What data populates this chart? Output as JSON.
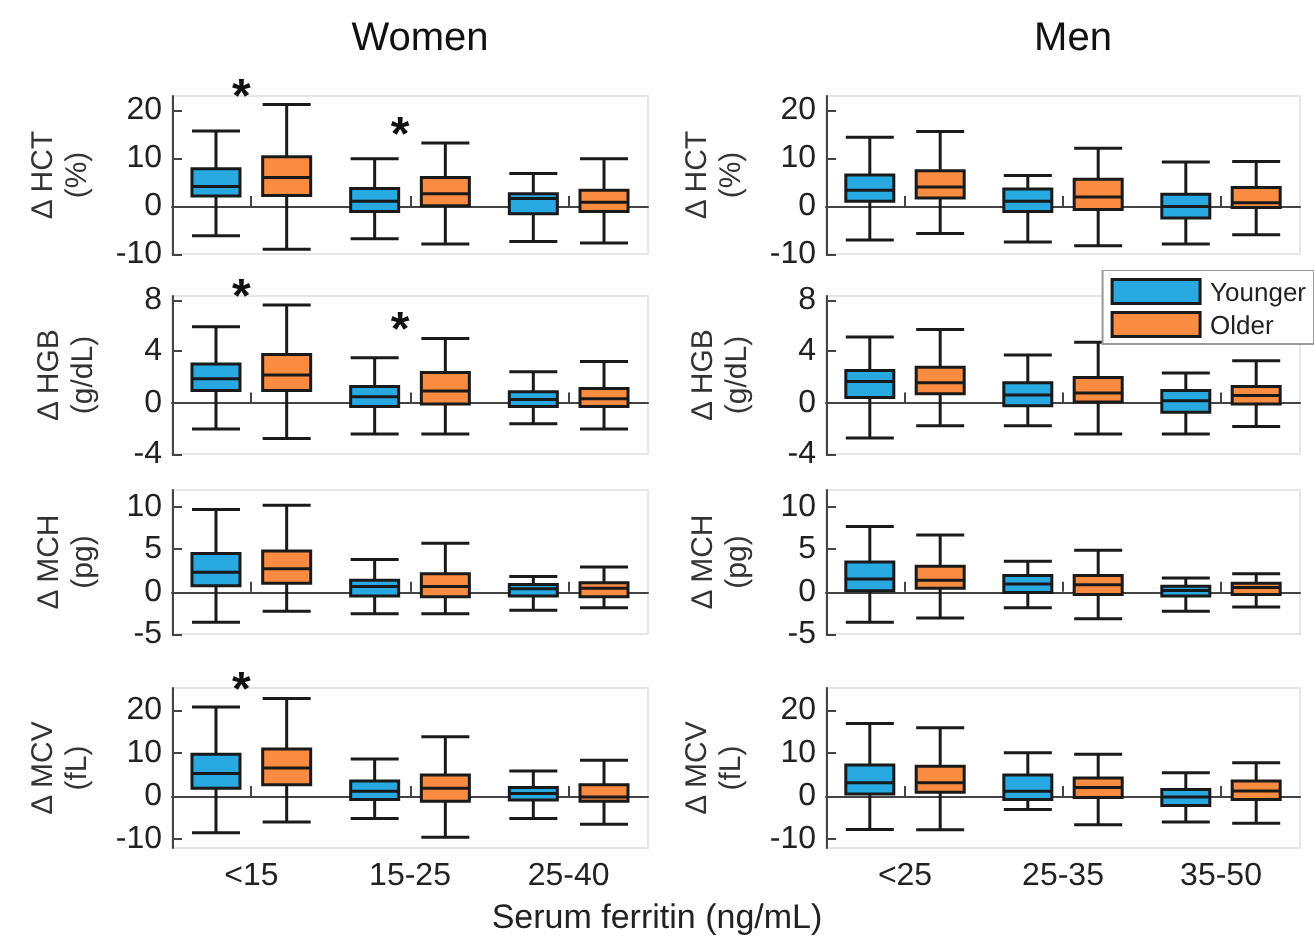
{
  "chart_data": [
    {
      "type": "box",
      "title": "Women",
      "ylabel": "Δ HCT\n(%)",
      "categories": [
        null,
        null,
        null
      ],
      "ylim": [
        -10,
        23
      ],
      "yticks": [
        -10,
        0,
        10,
        20
      ],
      "tick_labels": "y",
      "annotations": [
        "*",
        "*"
      ],
      "series": [
        {
          "color": "#29a9e1",
          "boxes": [
            {
              "low": -6.2,
              "q1": 2.1,
              "median": 4.1,
              "q3": 7.8,
              "high": 15.7
            },
            {
              "low": -6.8,
              "q1": -1.1,
              "median": 1,
              "q3": 3.7,
              "high": 9.9
            },
            {
              "low": -7.4,
              "q1": -1.6,
              "median": 1.6,
              "q3": 2.6,
              "high": 6.8
            }
          ]
        },
        {
          "color": "#fa8c41",
          "boxes": [
            {
              "low": -9,
              "q1": 2.2,
              "median": 6,
              "q3": 10.3,
              "high": 21.2
            },
            {
              "low": -7.9,
              "q1": 0.1,
              "median": 2.6,
              "q3": 6,
              "high": 13.2
            },
            {
              "low": -7.7,
              "q1": -1.1,
              "median": 0.8,
              "q3": 3.3,
              "high": 9.9
            }
          ]
        }
      ]
    },
    {
      "type": "box",
      "title": "Men",
      "ylabel": "Δ HCT\n(%)",
      "categories": [
        null,
        null,
        null
      ],
      "ylim": [
        -10,
        23
      ],
      "yticks": [
        -10,
        0,
        10,
        20
      ],
      "tick_labels": "y",
      "series": [
        {
          "color": "#29a9e1",
          "boxes": [
            {
              "low": -7.1,
              "q1": 1,
              "median": 3.3,
              "q3": 6.5,
              "high": 14.4
            },
            {
              "low": -7.5,
              "q1": -1.1,
              "median": 1,
              "q3": 3.6,
              "high": 6.4
            },
            {
              "low": -7.9,
              "q1": -2.5,
              "median": -0.1,
              "q3": 2.5,
              "high": 9.2
            }
          ]
        },
        {
          "color": "#fa8c41",
          "boxes": [
            {
              "low": -5.7,
              "q1": 1.7,
              "median": 4,
              "q3": 7.4,
              "high": 15.6
            },
            {
              "low": -8.3,
              "q1": -0.7,
              "median": 1.9,
              "q3": 5.6,
              "high": 12.1
            },
            {
              "low": -6,
              "q1": -0.3,
              "median": 0.7,
              "q3": 3.9,
              "high": 9.3
            }
          ]
        }
      ]
    },
    {
      "type": "box",
      "ylabel": "Δ HGB\n(g/dL)",
      "categories": [
        null,
        null,
        null
      ],
      "ylim": [
        -4,
        8.3
      ],
      "yticks": [
        -4,
        0,
        4,
        8
      ],
      "tick_labels": "y",
      "annotations": [
        "*",
        "*"
      ],
      "series": [
        {
          "color": "#29a9e1",
          "boxes": [
            {
              "low": -2.05,
              "q1": 0.95,
              "median": 1.85,
              "q3": 3,
              "high": 5.9
            },
            {
              "low": -2.45,
              "q1": -0.3,
              "median": 0.45,
              "q3": 1.25,
              "high": 3.5
            },
            {
              "low": -1.65,
              "q1": -0.3,
              "median": 0.25,
              "q3": 0.85,
              "high": 2.4
            }
          ]
        },
        {
          "color": "#fa8c41",
          "boxes": [
            {
              "low": -2.8,
              "q1": 0.95,
              "median": 2.15,
              "q3": 3.75,
              "high": 7.6
            },
            {
              "low": -2.45,
              "q1": -0.1,
              "median": 0.9,
              "q3": 2.35,
              "high": 5
            },
            {
              "low": -2.05,
              "q1": -0.3,
              "median": 0.3,
              "q3": 1.1,
              "high": 3.2
            }
          ]
        }
      ]
    },
    {
      "type": "box",
      "ylabel": "Δ HGB\n(g/dL)",
      "categories": [
        null,
        null,
        null
      ],
      "ylim": [
        -4,
        8.3
      ],
      "yticks": [
        -4,
        0,
        4,
        8
      ],
      "tick_labels": "y",
      "legend": "top right",
      "series": [
        {
          "name": "Younger",
          "color": "#29a9e1",
          "boxes": [
            {
              "low": -2.75,
              "q1": 0.4,
              "median": 1.65,
              "q3": 2.5,
              "high": 5.1
            },
            {
              "low": -1.8,
              "q1": -0.25,
              "median": 0.6,
              "q3": 1.55,
              "high": 3.7
            },
            {
              "low": -2.45,
              "q1": -0.75,
              "median": 0.15,
              "q3": 0.95,
              "high": 2.3
            }
          ]
        },
        {
          "name": "Older",
          "color": "#fa8c41",
          "boxes": [
            {
              "low": -1.8,
              "q1": 0.7,
              "median": 1.55,
              "q3": 2.75,
              "high": 5.7
            },
            {
              "low": -2.45,
              "q1": 0.05,
              "median": 0.75,
              "q3": 1.95,
              "high": 4.7
            },
            {
              "low": -1.85,
              "q1": -0.1,
              "median": 0.55,
              "q3": 1.25,
              "high": 3.25
            }
          ]
        }
      ]
    },
    {
      "type": "box",
      "ylabel": "Δ MCH\n(pg)",
      "categories": [
        null,
        null,
        null
      ],
      "ylim": [
        -5,
        12
      ],
      "yticks": [
        -5,
        0,
        5,
        10
      ],
      "tick_labels": "y",
      "series": [
        {
          "color": "#29a9e1",
          "boxes": [
            {
              "low": -3.6,
              "q1": 0.7,
              "median": 2.3,
              "q3": 4.5,
              "high": 9.7
            },
            {
              "low": -2.6,
              "q1": -0.5,
              "median": 0.6,
              "q3": 1.35,
              "high": 3.8
            },
            {
              "low": -2.2,
              "q1": -0.5,
              "median": 0.35,
              "q3": 0.85,
              "high": 1.8
            }
          ]
        },
        {
          "color": "#fa8c41",
          "boxes": [
            {
              "low": -2.3,
              "q1": 1,
              "median": 2.7,
              "q3": 4.8,
              "high": 10.2
            },
            {
              "low": -2.6,
              "q1": -0.6,
              "median": 0.6,
              "q3": 2.1,
              "high": 5.7
            },
            {
              "low": -1.9,
              "q1": -0.6,
              "median": 0.4,
              "q3": 1.05,
              "high": 2.9
            }
          ]
        }
      ]
    },
    {
      "type": "box",
      "ylabel": "Δ MCH\n(pg)",
      "categories": [
        null,
        null,
        null
      ],
      "ylim": [
        -5,
        12
      ],
      "yticks": [
        -5,
        0,
        5,
        10
      ],
      "tick_labels": "y",
      "series": [
        {
          "color": "#29a9e1",
          "boxes": [
            {
              "low": -3.6,
              "q1": 0.1,
              "median": 1.5,
              "q3": 3.5,
              "high": 7.7
            },
            {
              "low": -1.9,
              "q1": -0.1,
              "median": 0.9,
              "q3": 1.9,
              "high": 3.6
            },
            {
              "low": -2.3,
              "q1": -0.5,
              "median": 0.15,
              "q3": 0.65,
              "high": 1.6
            }
          ]
        },
        {
          "color": "#fa8c41",
          "boxes": [
            {
              "low": -3.1,
              "q1": 0.4,
              "median": 1.35,
              "q3": 3,
              "high": 6.7
            },
            {
              "low": -3.2,
              "q1": -0.35,
              "median": 0.8,
              "q3": 1.9,
              "high": 4.9
            },
            {
              "low": -1.8,
              "q1": -0.35,
              "median": 0.5,
              "q3": 1,
              "high": 2.1
            }
          ]
        }
      ]
    },
    {
      "type": "box",
      "ylabel": "Δ MCV\n(fL)",
      "xlabel": "Serum ferritin (ng/mL)",
      "categories": [
        "<15",
        "15-25",
        "25-40"
      ],
      "ylim": [
        -12,
        25
      ],
      "yticks": [
        -10,
        0,
        10,
        20
      ],
      "annotations": [
        "*"
      ],
      "series": [
        {
          "color": "#29a9e1",
          "boxes": [
            {
              "low": -8.5,
              "q1": 1.8,
              "median": 5.2,
              "q3": 9.7,
              "high": 20.6
            },
            {
              "low": -5.2,
              "q1": -0.8,
              "median": 1.1,
              "q3": 3.5,
              "high": 8.6
            },
            {
              "low": -5.2,
              "q1": -0.9,
              "median": 0.6,
              "q3": 2,
              "high": 5.8
            }
          ]
        },
        {
          "color": "#fa8c41",
          "boxes": [
            {
              "low": -6,
              "q1": 2.6,
              "median": 6.5,
              "q3": 10.9,
              "high": 22.6
            },
            {
              "low": -9.5,
              "q1": -1.2,
              "median": 1.8,
              "q3": 4.9,
              "high": 13.7
            },
            {
              "low": -6.5,
              "q1": -1.2,
              "median": -0.2,
              "q3": 2.6,
              "high": 8.3
            }
          ]
        }
      ]
    },
    {
      "type": "box",
      "ylabel": "Δ MCV\n(fL)",
      "categories": [
        "<25",
        "25-35",
        "35-50"
      ],
      "ylim": [
        -12,
        25
      ],
      "yticks": [
        -10,
        0,
        10,
        20
      ],
      "series": [
        {
          "color": "#29a9e1",
          "boxes": [
            {
              "low": -7.7,
              "q1": 0.5,
              "median": 3.1,
              "q3": 7.2,
              "high": 16.8
            },
            {
              "low": -3.1,
              "q1": -0.8,
              "median": 1.1,
              "q3": 4.9,
              "high": 10
            },
            {
              "low": -6,
              "q1": -2.2,
              "median": -0.2,
              "q3": 1.5,
              "high": 5.4
            }
          ]
        },
        {
          "color": "#fa8c41",
          "boxes": [
            {
              "low": -7.8,
              "q1": 0.9,
              "median": 3.1,
              "q3": 6.9,
              "high": 15.8
            },
            {
              "low": -6.6,
              "q1": -0.3,
              "median": 2,
              "q3": 4.2,
              "high": 9.7
            },
            {
              "low": -6.3,
              "q1": -0.8,
              "median": 1.2,
              "q3": 3.5,
              "high": 7.7
            }
          ]
        }
      ]
    }
  ]
}
